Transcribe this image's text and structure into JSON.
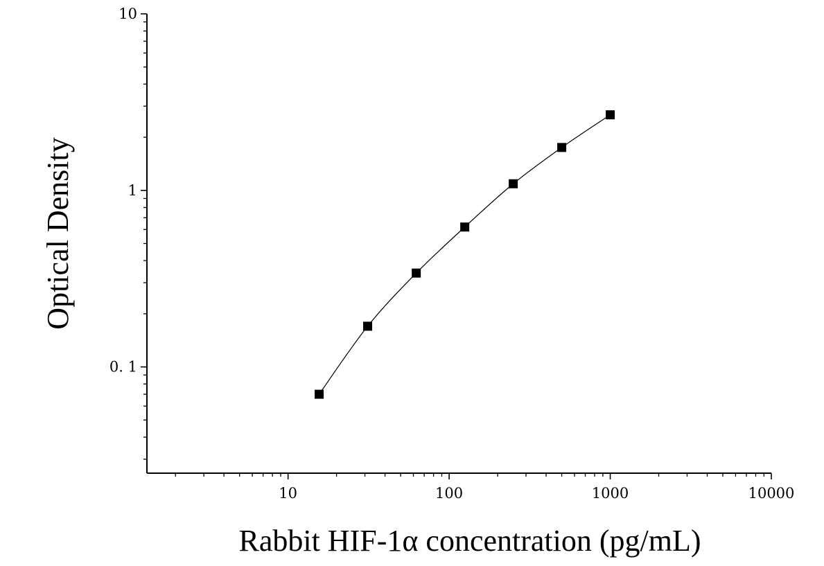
{
  "chart_data": {
    "type": "scatter",
    "title": "",
    "xlabel": "Rabbit HIF-1α concentration (pg/mL)",
    "ylabel": "Optical Density",
    "x_scale": "log",
    "y_scale": "log",
    "xlim": [
      1.33,
      10000
    ],
    "ylim": [
      0.025,
      10
    ],
    "x_ticks": [
      {
        "value": 10,
        "label": "10"
      },
      {
        "value": 100,
        "label": "100"
      },
      {
        "value": 1000,
        "label": "1000"
      },
      {
        "value": 10000,
        "label": "10000"
      }
    ],
    "y_ticks": [
      {
        "value": 0.1,
        "label": "0. 1"
      },
      {
        "value": 1,
        "label": "1"
      },
      {
        "value": 10,
        "label": "10"
      }
    ],
    "grid": false,
    "legend": "none",
    "marker": "square",
    "fit_line": true,
    "colors": {
      "marker": "#000000",
      "line": "#000000",
      "axis": "#000000"
    },
    "series": [
      {
        "x": [
          15.6,
          31.2,
          62.5,
          125,
          250,
          500,
          1000
        ],
        "y": [
          0.07,
          0.17,
          0.34,
          0.62,
          1.09,
          1.75,
          2.68
        ]
      }
    ]
  }
}
